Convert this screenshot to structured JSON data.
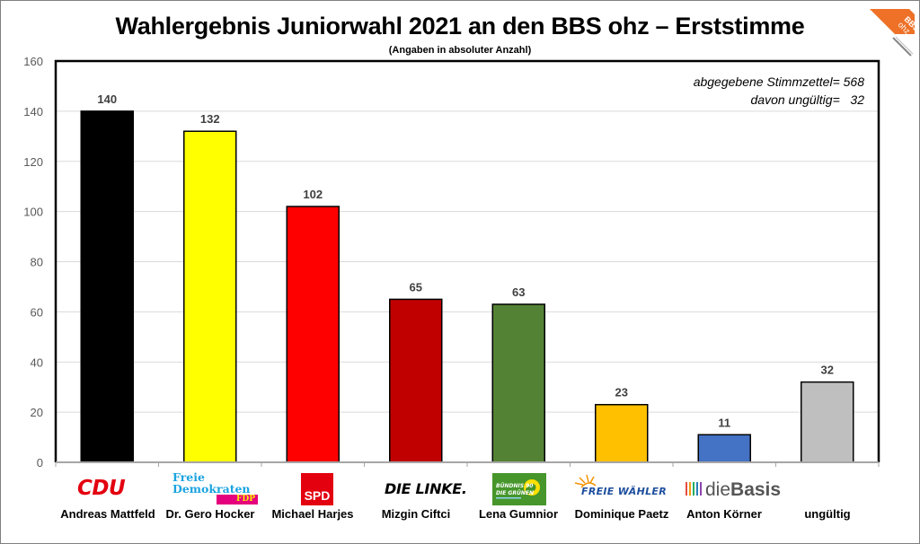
{
  "header": {
    "title": "Wahlergebnis Juniorwahl 2021 an den BBS ohz – Erststimme",
    "subtitle": "(Angaben in absoluter Anzahl)",
    "logo_text_line1": "BBS",
    "logo_text_line2": "ohz"
  },
  "notes": {
    "line1": "abgegebene Stimmzettel= 568",
    "line2": "davon ungültig=   32"
  },
  "parties": [
    {
      "logo": "CDU",
      "candidate": "Andreas Mattfeld"
    },
    {
      "logo": "Freie Demokraten FDP",
      "logo_line1": "Freie",
      "logo_line2": "Demokraten",
      "logo_line3": "FDP",
      "candidate": "Dr. Gero Hocker"
    },
    {
      "logo": "SPD",
      "candidate": "Michael Harjes"
    },
    {
      "logo": "DIE LINKE.",
      "candidate": "Mizgin Ciftci"
    },
    {
      "logo": "BÜNDNIS 90 DIE GRÜNEN",
      "logo_line1": "BÜNDNIS 90",
      "logo_line2": "DIE GRÜNEN",
      "candidate": "Lena Gumnior"
    },
    {
      "logo": "FREIE WÄHLER",
      "candidate": "Dominique Paetz"
    },
    {
      "logo": "dieBasis",
      "logo_part1": "die",
      "logo_part2": "Basis",
      "candidate": "Anton Körner"
    },
    {
      "logo": "",
      "candidate": "ungültig"
    }
  ],
  "chart_data": {
    "type": "bar",
    "title": "Wahlergebnis Juniorwahl 2021 an den BBS ohz – Erststimme",
    "subtitle": "(Angaben in absoluter Anzahl)",
    "xlabel": "",
    "ylabel": "",
    "categories": [
      "Andreas Mattfeld",
      "Dr. Gero Hocker",
      "Michael Harjes",
      "Mizgin Ciftci",
      "Lena Gumnior",
      "Dominique Paetz",
      "Anton Körner",
      "ungültig"
    ],
    "values": [
      140,
      132,
      102,
      65,
      63,
      23,
      11,
      32
    ],
    "colors": [
      "#000000",
      "#ffff00",
      "#ff0000",
      "#c00000",
      "#548235",
      "#ffc000",
      "#4472c4",
      "#bfbfbf"
    ],
    "data_labels": [
      "140",
      "132",
      "102",
      "65",
      "63",
      "23",
      "11",
      "32"
    ],
    "ylim": [
      0,
      160
    ],
    "yticks": [
      0,
      20,
      40,
      60,
      80,
      100,
      120,
      140,
      160
    ],
    "grid": true,
    "legend": "none",
    "annotations": [
      "abgegebene Stimmzettel= 568",
      "davon ungültig=   32"
    ]
  }
}
